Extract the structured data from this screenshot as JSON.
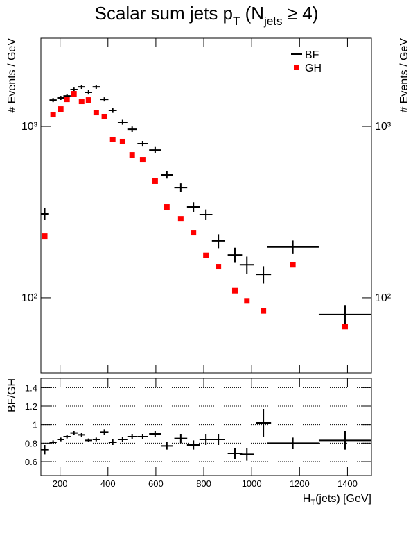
{
  "chart_data": [
    {
      "type": "errorbar",
      "title": [
        "Scalar sum jets p",
        "T",
        " (N",
        "jets",
        " ≥ 4)"
      ],
      "y_label": "# Events / GeV",
      "log_y": true,
      "xlim": [
        120,
        1500
      ],
      "ylim": [
        36.5,
        3270
      ],
      "yticks": [
        {
          "value": 100,
          "label": "10²"
        },
        {
          "value": 1000,
          "label": "10³"
        }
      ],
      "legend": "upper right",
      "x": [
        136,
        171,
        203,
        229,
        258,
        290,
        319,
        351,
        385,
        420,
        461,
        501,
        545,
        597,
        646,
        704,
        757,
        809,
        861,
        930,
        980,
        1049,
        1172,
        1390
      ],
      "series": [
        {
          "name": "BF",
          "color": "#000000",
          "marker": "cross",
          "values": [
            309,
            1425,
            1466,
            1507,
            1639,
            1701,
            1579,
            1701,
            1438,
            1239,
            1058,
            963,
            792,
            728,
            521,
            440,
            339,
            306,
            215,
            178,
            156,
            137,
            198,
            80
          ],
          "xerr": [
            15,
            15,
            15,
            15,
            15,
            15,
            15,
            15,
            17,
            17,
            20,
            20,
            22,
            25,
            25,
            27,
            27,
            27,
            27,
            30,
            30,
            32,
            108,
            110
          ],
          "yerr": [
            25,
            40,
            40,
            40,
            45,
            45,
            45,
            45,
            40,
            40,
            35,
            35,
            30,
            30,
            25,
            25,
            22,
            22,
            20,
            18,
            18,
            16,
            18,
            10
          ]
        },
        {
          "name": "GH",
          "color": "#ff0000",
          "marker": "square",
          "values": [
            229,
            1172,
            1262,
            1438,
            1550,
            1399,
            1425,
            1205,
            1140,
            838,
            815,
            682,
            639,
            479,
            339,
            289,
            240,
            177,
            152,
            110,
            96,
            84,
            156,
            68
          ]
        }
      ]
    },
    {
      "type": "errorbar",
      "y_label": "BF/GH",
      "x_label": [
        "H",
        "T",
        "(jets) [GeV]"
      ],
      "xlim": [
        120,
        1500
      ],
      "ylim": [
        0.45,
        1.5
      ],
      "xticks": [
        200,
        400,
        600,
        800,
        1000,
        1200,
        1400
      ],
      "yticks": [
        0.6,
        0.8,
        1,
        1.2,
        1.4
      ],
      "grid": true,
      "x": [
        136,
        171,
        203,
        229,
        258,
        290,
        319,
        351,
        385,
        420,
        461,
        501,
        545,
        597,
        646,
        704,
        757,
        809,
        861,
        930,
        980,
        1049,
        1172,
        1390
      ],
      "series": [
        {
          "color": "#000000",
          "marker": "cross",
          "values": [
            0.73,
            0.81,
            0.84,
            0.87,
            0.91,
            0.89,
            0.83,
            0.84,
            0.92,
            0.81,
            0.84,
            0.87,
            0.87,
            0.9,
            0.77,
            0.85,
            0.78,
            0.84,
            0.84,
            0.69,
            0.68,
            1.02,
            0.8,
            0.83
          ],
          "xerr": [
            15,
            15,
            15,
            15,
            15,
            15,
            15,
            15,
            17,
            17,
            20,
            20,
            22,
            25,
            25,
            27,
            27,
            27,
            27,
            30,
            30,
            32,
            108,
            110
          ],
          "yerr": [
            0.05,
            0.02,
            0.02,
            0.02,
            0.02,
            0.02,
            0.02,
            0.02,
            0.03,
            0.03,
            0.03,
            0.03,
            0.03,
            0.03,
            0.04,
            0.05,
            0.05,
            0.06,
            0.06,
            0.06,
            0.07,
            0.15,
            0.06,
            0.1
          ]
        }
      ]
    }
  ]
}
